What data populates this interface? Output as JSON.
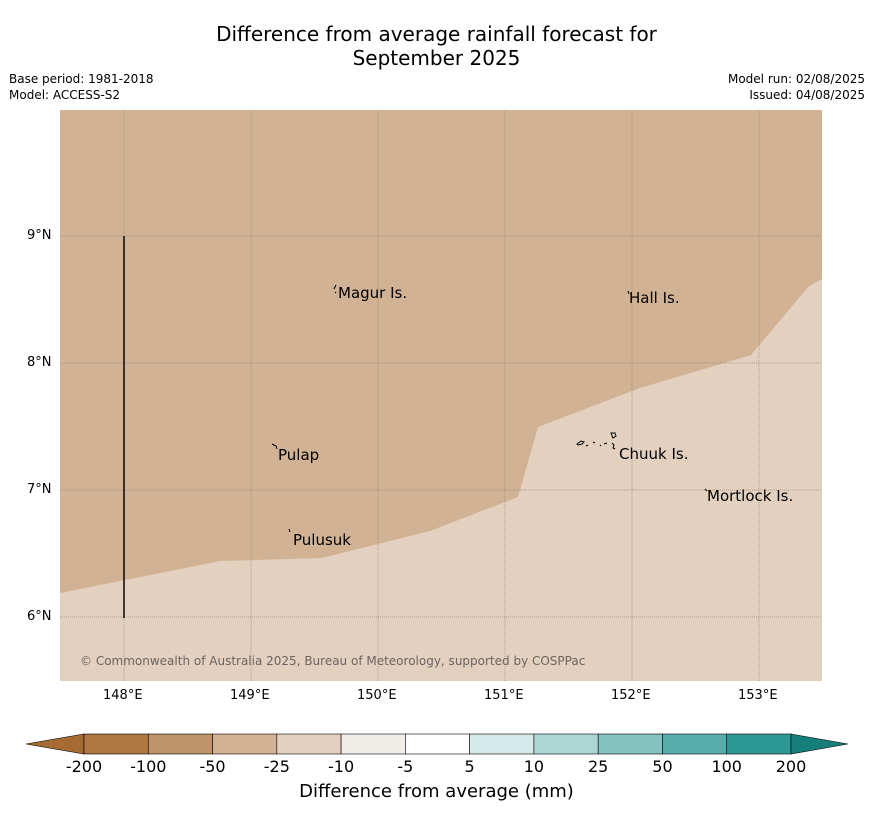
{
  "title_line1": "Difference from average rainfall forecast for",
  "title_line2": "September 2025",
  "meta": {
    "base_period": "Base period: 1981-2018",
    "model": "Model: ACCESS-S2",
    "model_run": "Model run: 02/08/2025",
    "issued": "Issued: 04/08/2025"
  },
  "axes": {
    "lat_labels": [
      "9°N",
      "8°N",
      "7°N",
      "6°N"
    ],
    "lon_labels": [
      "148°E",
      "149°E",
      "150°E",
      "151°E",
      "152°E",
      "153°E"
    ]
  },
  "places": {
    "magur": "Magur Is.",
    "hall": "Hall Is.",
    "pulap": "Pulap",
    "chuuk": "Chuuk Is.",
    "mortlock": "Mortlock Is.",
    "pulusuk": "Pulusuk"
  },
  "credit": "© Commonwealth of Australia 2025, Bureau of Meteorology, supported by COSPPac",
  "colors": {
    "drier_25_50": "#d1b294",
    "drier_10_25": "#e3d0bf",
    "grid": "#8a7a6a"
  },
  "colorbar": {
    "ticks": [
      "-200",
      "-100",
      "-50",
      "-25",
      "-10",
      "-5",
      "5",
      "10",
      "25",
      "50",
      "100",
      "200"
    ],
    "colors": [
      "#a66b32",
      "#af7843",
      "#bf9468",
      "#d1b294",
      "#e3d0bf",
      "#f0ede8",
      "#ffffff",
      "#d5ebe9",
      "#add6d4",
      "#84c2c0",
      "#57adab",
      "#2d9996",
      "#167f7c"
    ],
    "title": "Difference from average (mm)"
  }
}
